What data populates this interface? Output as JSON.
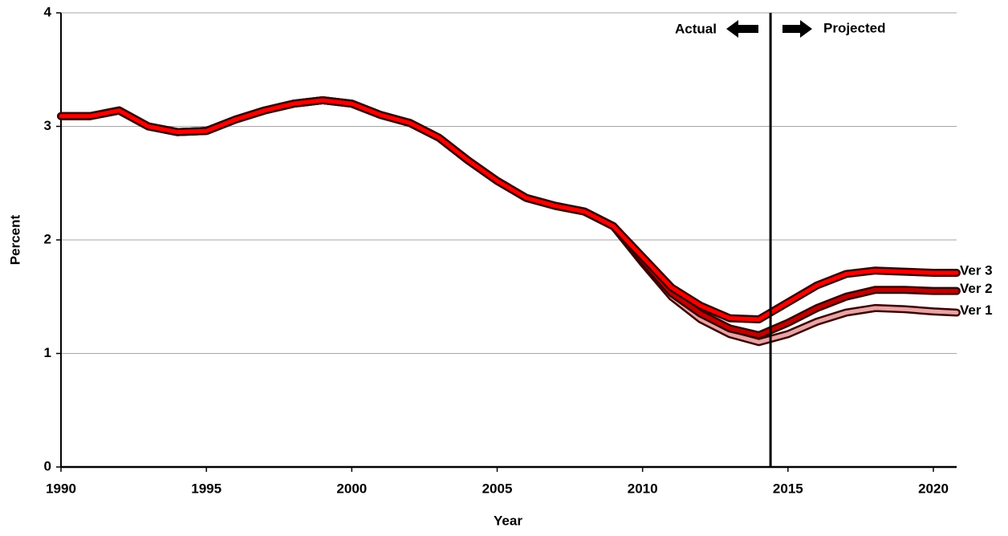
{
  "chart_data": {
    "type": "line",
    "x_label": "Year",
    "y_label": "Percent",
    "x": [
      1990,
      1991,
      1992,
      1993,
      1994,
      1995,
      1996,
      1997,
      1998,
      1999,
      2000,
      2001,
      2002,
      2003,
      2004,
      2005,
      2006,
      2007,
      2008,
      2009,
      2010,
      2011,
      2012,
      2013,
      2014,
      2015,
      2016,
      2017,
      2018,
      2019,
      2020,
      2020.8
    ],
    "series": [
      {
        "name": "Ver 1",
        "color": "#e8a4a4",
        "values": [
          3.09,
          3.09,
          3.14,
          3.0,
          2.95,
          2.96,
          3.06,
          3.14,
          3.2,
          3.23,
          3.2,
          3.1,
          3.03,
          2.9,
          2.7,
          2.52,
          2.37,
          2.3,
          2.25,
          2.12,
          1.8,
          1.5,
          1.3,
          1.17,
          1.1,
          1.17,
          1.28,
          1.36,
          1.4,
          1.39,
          1.37,
          1.36
        ]
      },
      {
        "name": "Ver 2",
        "color": "#c00000",
        "values": [
          3.09,
          3.09,
          3.14,
          3.0,
          2.95,
          2.96,
          3.06,
          3.14,
          3.2,
          3.23,
          3.2,
          3.1,
          3.03,
          2.9,
          2.7,
          2.52,
          2.37,
          2.3,
          2.25,
          2.12,
          1.82,
          1.53,
          1.35,
          1.22,
          1.16,
          1.27,
          1.4,
          1.5,
          1.56,
          1.56,
          1.55,
          1.55
        ]
      },
      {
        "name": "Ver 3",
        "color": "#ff0000",
        "values": [
          3.09,
          3.09,
          3.14,
          3.0,
          2.95,
          2.96,
          3.06,
          3.14,
          3.2,
          3.23,
          3.2,
          3.1,
          3.03,
          2.9,
          2.7,
          2.52,
          2.37,
          2.3,
          2.25,
          2.12,
          1.85,
          1.58,
          1.42,
          1.31,
          1.3,
          1.45,
          1.6,
          1.7,
          1.73,
          1.72,
          1.71,
          1.71
        ]
      }
    ],
    "xlim": [
      1990,
      2020.8
    ],
    "ylim": [
      0,
      4
    ],
    "xticks": [
      1990,
      1995,
      2000,
      2005,
      2010,
      2015,
      2020
    ],
    "yticks": [
      0,
      1,
      2,
      3,
      4
    ],
    "grid": true,
    "divider": {
      "x": 2014.4,
      "left_label": "Actual",
      "right_label": "Projected"
    }
  }
}
